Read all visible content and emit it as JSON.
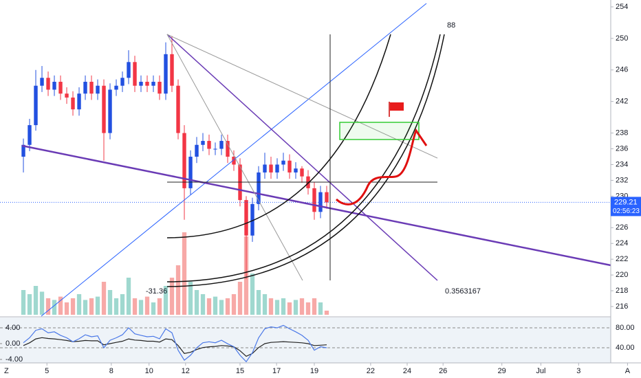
{
  "chart_data": {
    "type": "candlestick",
    "ylim": [
      214.78,
      254.87
    ],
    "yticks": [
      216,
      218,
      220,
      222,
      224,
      226,
      230,
      232,
      234,
      236,
      238,
      242,
      246,
      250,
      254
    ],
    "xlim": [
      -3.78,
      94.89
    ],
    "xticks": [
      {
        "value": 3.8,
        "label": "5"
      },
      {
        "value": 14.2,
        "label": "8"
      },
      {
        "value": 20.3,
        "label": "10"
      },
      {
        "value": 26.2,
        "label": "12"
      },
      {
        "value": 35,
        "label": "15"
      },
      {
        "value": 40.9,
        "label": "17"
      },
      {
        "value": 47,
        "label": "19"
      },
      {
        "value": 56.1,
        "label": "22"
      },
      {
        "value": 62,
        "label": "24"
      },
      {
        "value": 67.8,
        "label": "26"
      },
      {
        "value": 77.3,
        "label": "29"
      },
      {
        "value": 83.6,
        "label": "Jul"
      },
      {
        "value": 89.7,
        "label": "3"
      },
      {
        "value": 97.6,
        "label": "A"
      }
    ],
    "grid": false,
    "up_color": "#2250e0",
    "down_color": "#f23645",
    "candles": {
      "open": [
        235,
        236.5,
        239,
        244,
        245,
        243.5,
        244.5,
        243,
        242.5,
        241,
        243,
        244.5,
        243,
        244,
        238,
        243.5,
        244,
        245,
        247,
        244,
        244.5,
        244,
        244.5,
        243,
        248,
        244,
        238,
        231,
        235,
        236.5,
        237,
        236,
        236,
        237,
        235,
        234,
        229.5,
        225,
        229,
        233,
        234,
        233,
        234,
        234.5,
        233,
        233.5,
        232.5,
        231,
        228,
        230.5
      ],
      "high": [
        237.3,
        239.8,
        246,
        246.5,
        245.8,
        245.3,
        245.3,
        243.8,
        243.3,
        243.8,
        245.3,
        245.3,
        244.8,
        244.8,
        244.3,
        244.8,
        245.8,
        248.5,
        247.8,
        245.3,
        245.3,
        245.3,
        245.3,
        249.5,
        250.3,
        244.8,
        239,
        235.8,
        237.5,
        238,
        237.8,
        236.8,
        237.8,
        237.8,
        235.8,
        234.8,
        230,
        229.8,
        233.8,
        235.5,
        235,
        234.8,
        235.5,
        235.3,
        234.3,
        233.8,
        233.3,
        231.8,
        231.3,
        231.3
      ],
      "low": [
        233,
        235.7,
        238.3,
        243.2,
        242.7,
        242.7,
        242.2,
        241.7,
        240.2,
        240.2,
        242.2,
        242.2,
        242.2,
        234.5,
        237.2,
        242.7,
        243.2,
        244.2,
        243.2,
        243.2,
        243.2,
        243.2,
        242.2,
        242.2,
        243.2,
        237.2,
        227,
        230.2,
        234.2,
        235.7,
        235.2,
        235.2,
        235.2,
        234.2,
        233.2,
        228.7,
        219.5,
        224.2,
        228.2,
        232.2,
        232.2,
        232.2,
        233.2,
        232.2,
        232.2,
        231.7,
        230.2,
        227,
        227.2,
        228.4
      ],
      "close": [
        236.5,
        239,
        244,
        245,
        243.5,
        244.5,
        243,
        242.5,
        241,
        243,
        244.5,
        243,
        244,
        238,
        243.5,
        244,
        245,
        247,
        244,
        244.5,
        244,
        244.5,
        243,
        248,
        244,
        238,
        231,
        235,
        236.5,
        237,
        236,
        236,
        237,
        235,
        234,
        229.5,
        225,
        229,
        233,
        234,
        233,
        234,
        234.5,
        233,
        233.5,
        232.5,
        231,
        228,
        230.5,
        229.2
      ]
    },
    "volume": {
      "ylim": [
        0,
        100
      ],
      "up_color": "#9fd8cf",
      "down_color": "#f7a9a7",
      "values": [
        30,
        25,
        35,
        28,
        20,
        18,
        22,
        15,
        20,
        25,
        18,
        20,
        22,
        40,
        30,
        20,
        25,
        45,
        20,
        18,
        22,
        15,
        20,
        35,
        45,
        60,
        100,
        40,
        30,
        25,
        20,
        22,
        18,
        20,
        25,
        40,
        95,
        50,
        30,
        25,
        20,
        18,
        20,
        15,
        18,
        20,
        15,
        20,
        15,
        5
      ]
    },
    "last_price": 229.21,
    "countdown": "02:56:23",
    "annotations": [
      "88",
      "-31.36",
      "0.3563167"
    ],
    "oscillator": {
      "ylim": [
        -4.7,
        6.6
      ],
      "yticks": [
        {
          "value": 4,
          "label": "4.00"
        },
        {
          "value": 0,
          "label": "0.00"
        },
        {
          "value": -4,
          "label": "-4.00"
        }
      ],
      "y2lim": [
        11,
        100.7
      ],
      "y2ticks": [
        {
          "value": 80,
          "label": "80.00"
        },
        {
          "value": 40,
          "label": "40.00"
        }
      ],
      "series": [
        {
          "color": "#222222",
          "values": [
            -0.5,
            0.2,
            1.2,
            1.5,
            1.3,
            1.2,
            1.0,
            0.8,
            0.5,
            0.6,
            0.8,
            0.7,
            0.7,
            -0.3,
            0.0,
            0.3,
            0.6,
            1.2,
            0.9,
            0.8,
            0.6,
            0.6,
            0.4,
            1.2,
            1.0,
            -0.5,
            -2.5,
            -2.2,
            -1.5,
            -1.0,
            -0.8,
            -0.7,
            -0.5,
            -0.6,
            -0.8,
            -1.8,
            -3.2,
            -2.5,
            -1.0,
            0.0,
            0.3,
            0.4,
            0.5,
            0.4,
            0.3,
            0.2,
            0.0,
            -0.5,
            -0.4,
            -0.3
          ]
        },
        {
          "color": "#4a78e8",
          "axis": "y2",
          "values": [
            50,
            60,
            75,
            78,
            70,
            72,
            65,
            60,
            52,
            58,
            66,
            62,
            64,
            40,
            55,
            60,
            66,
            80,
            68,
            65,
            62,
            63,
            58,
            78,
            70,
            35,
            15,
            25,
            40,
            50,
            52,
            50,
            55,
            48,
            42,
            25,
            12,
            30,
            60,
            78,
            82,
            80,
            85,
            78,
            72,
            65,
            55,
            35,
            42,
            40
          ]
        }
      ]
    },
    "corner_button": "Z"
  }
}
